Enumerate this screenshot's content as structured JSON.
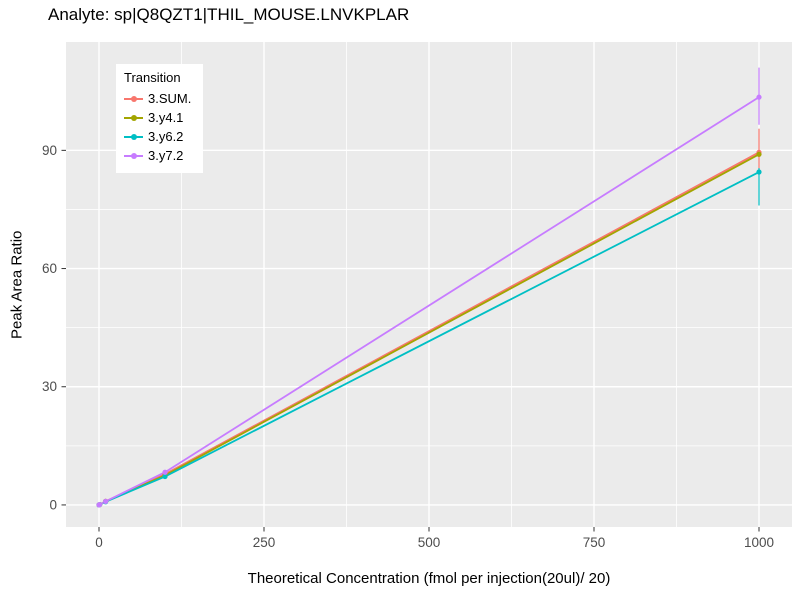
{
  "chart_data": {
    "type": "line",
    "title": "Analyte: sp|Q8QZT1|THIL_MOUSE.LNVKPLAR",
    "xlabel": "Theoretical Concentration (fmol per injection(20ul)/ 20)",
    "ylabel": "Peak Area Ratio",
    "legend_title": "Transition",
    "legend_position": "top-left-inside",
    "grid": true,
    "xlim": [
      -50,
      1050
    ],
    "ylim": [
      -5.6,
      117.5
    ],
    "xticks": [
      0,
      250,
      500,
      750,
      1000
    ],
    "yticks": [
      0,
      30,
      60,
      90
    ],
    "x": [
      0,
      1,
      10,
      100,
      1000
    ],
    "series": [
      {
        "name": "3.SUM.",
        "color": "#F8766D",
        "values": [
          0,
          0.1,
          0.9,
          7.8,
          89.5
        ],
        "error_bar": {
          "x": 1000,
          "low": 84.0,
          "high": 95.5
        }
      },
      {
        "name": "3.y4.1",
        "color": "#A3A500",
        "values": [
          0,
          0.1,
          0.9,
          7.5,
          89.0
        ],
        "error_bar": null
      },
      {
        "name": "3.y6.2",
        "color": "#00BFC4",
        "values": [
          0,
          0.1,
          0.8,
          7.2,
          84.5
        ],
        "error_bar": {
          "x": 1000,
          "low": 76.0,
          "high": 85.5
        }
      },
      {
        "name": "3.y7.2",
        "color": "#C77CFF",
        "values": [
          0,
          0.1,
          0.9,
          8.3,
          103.5
        ],
        "error_bar": {
          "x": 1000,
          "low": 96.5,
          "high": 111.0
        }
      }
    ],
    "colors": {
      "panel_background": "#EBEBEB",
      "grid_major": "#FFFFFF",
      "grid_minor": "#FFFFFF",
      "tick_mark": "#333333",
      "tick_label": "#4D4D4D"
    }
  }
}
